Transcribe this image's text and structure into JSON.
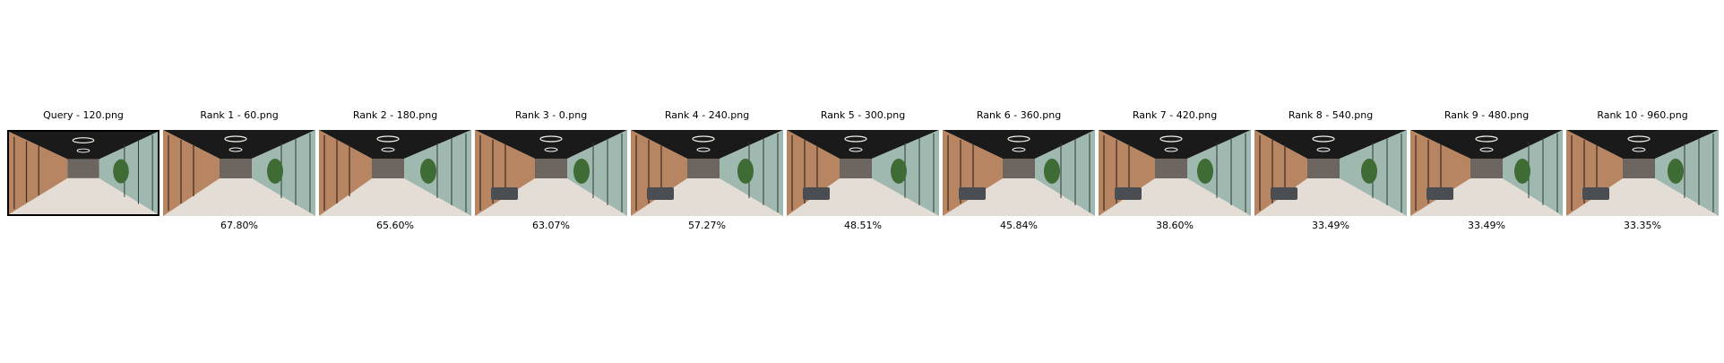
{
  "query": {
    "label": "Query - 120.png"
  },
  "results": [
    {
      "label": "Rank 1 - 60.png",
      "score": "67.80%"
    },
    {
      "label": "Rank 2 - 180.png",
      "score": "65.60%"
    },
    {
      "label": "Rank 3 - 0.png",
      "score": "63.07%"
    },
    {
      "label": "Rank 4 - 240.png",
      "score": "57.27%"
    },
    {
      "label": "Rank 5 - 300.png",
      "score": "48.51%"
    },
    {
      "label": "Rank 6 - 360.png",
      "score": "45.84%"
    },
    {
      "label": "Rank 7 - 420.png",
      "score": "38.60%"
    },
    {
      "label": "Rank 8 - 540.png",
      "score": "33.49%"
    },
    {
      "label": "Rank 9 - 480.png",
      "score": "33.49%"
    },
    {
      "label": "Rank 10 - 960.png",
      "score": "33.35%"
    }
  ],
  "colors": {
    "ceiling": "#1a1a1a",
    "wall_wood": "#b88562",
    "glass": "#9fb8b0",
    "floor": "#e4ddd6",
    "plant": "#3f6b35",
    "sofa": "#4a4e52",
    "query_border": "#000000"
  }
}
